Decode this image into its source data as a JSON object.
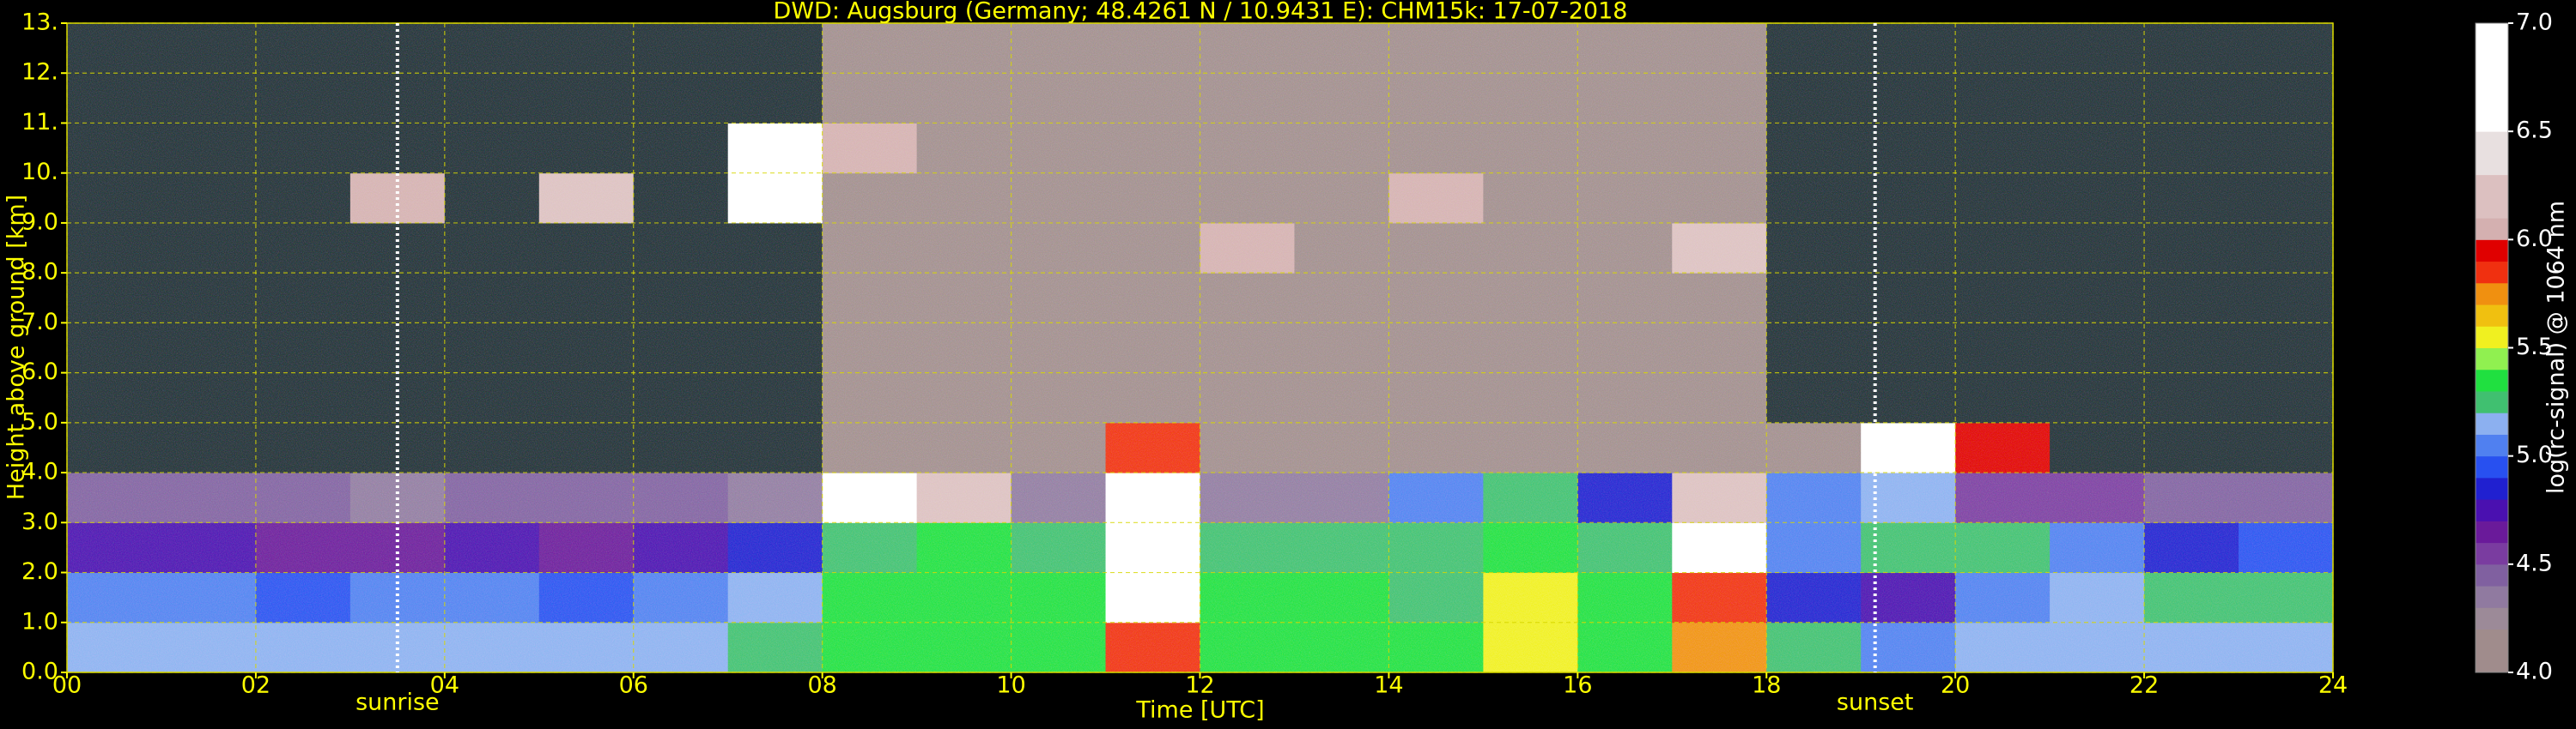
{
  "chart_data": {
    "type": "heatmap",
    "title": "DWD: Augsburg (Germany; 48.4261 N / 10.9431 E):    CHM15k: 17-07-2018",
    "xlabel": "Time [UTC]",
    "ylabel": "Height above ground [km]",
    "xlim": [
      0,
      24
    ],
    "ylim": [
      0,
      13
    ],
    "xticks": [
      {
        "value": 0,
        "label": "00"
      },
      {
        "value": 2,
        "label": "02"
      },
      {
        "value": 4,
        "label": "04"
      },
      {
        "value": 6,
        "label": "06"
      },
      {
        "value": 8,
        "label": "08"
      },
      10,
      12,
      14,
      16,
      18,
      20,
      22,
      24
    ],
    "yticks": [
      {
        "value": 0,
        "label": "0.0"
      },
      {
        "value": 1,
        "label": "1.0"
      },
      {
        "value": 2,
        "label": "2.0"
      },
      {
        "value": 3,
        "label": "3.0"
      },
      {
        "value": 4,
        "label": "4.0"
      },
      {
        "value": 5,
        "label": "5.0"
      },
      {
        "value": 6,
        "label": "6.0"
      },
      {
        "value": 7,
        "label": "7.0"
      },
      {
        "value": 8,
        "label": "8.0"
      },
      {
        "value": 9,
        "label": "9.0"
      },
      {
        "value": 10,
        "label": "10."
      },
      {
        "value": 11,
        "label": "11."
      },
      {
        "value": 12,
        "label": "12."
      },
      {
        "value": 13,
        "label": "13."
      }
    ],
    "grid": true,
    "grid_color": "#d8d800",
    "text_color": "#ffff00",
    "under_color": "#1e2c34",
    "z": [
      [
        5.15,
        5.15,
        5.15,
        5.15,
        5.15,
        5.15,
        5.15,
        5.25,
        5.35,
        5.35,
        5.35,
        5.8,
        5.35,
        5.35,
        5.35,
        5.6,
        5.35,
        5.7,
        5.25,
        5.05,
        5.15,
        5.15,
        5.15,
        5.15
      ],
      [
        5.05,
        5.05,
        4.95,
        5.05,
        5.05,
        4.95,
        5.05,
        5.15,
        5.35,
        5.35,
        5.35,
        6.6,
        5.35,
        5.35,
        5.3,
        5.6,
        5.35,
        5.8,
        4.85,
        4.75,
        5.05,
        5.15,
        5.25,
        5.25
      ],
      [
        4.75,
        4.75,
        4.65,
        4.65,
        4.75,
        4.65,
        4.75,
        4.85,
        5.3,
        5.35,
        5.25,
        6.6,
        5.25,
        5.25,
        5.25,
        5.35,
        5.25,
        6.6,
        5.05,
        5.25,
        5.25,
        5.05,
        4.85,
        4.95
      ],
      [
        4.45,
        4.45,
        4.45,
        4.35,
        4.45,
        4.45,
        4.45,
        4.35,
        6.6,
        6.2,
        4.35,
        6.6,
        4.35,
        4.35,
        5.05,
        5.25,
        4.85,
        6.2,
        5.05,
        5.15,
        4.55,
        4.55,
        4.45,
        4.45
      ],
      [
        3.9,
        3.9,
        3.9,
        3.9,
        3.9,
        3.9,
        3.9,
        3.9,
        4.05,
        4.05,
        4.05,
        5.8,
        4.05,
        4.05,
        4.05,
        4.05,
        4.05,
        4.05,
        4.05,
        6.6,
        5.9,
        3.9,
        3.9,
        3.9
      ],
      [
        3.9,
        3.9,
        3.9,
        3.9,
        3.9,
        3.9,
        3.9,
        3.9,
        4.05,
        4.05,
        4.05,
        4.05,
        4.05,
        4.05,
        4.05,
        4.05,
        4.05,
        4.05,
        3.9,
        3.9,
        3.9,
        3.9,
        3.9,
        3.9
      ],
      [
        3.9,
        3.9,
        3.9,
        3.9,
        3.9,
        3.9,
        3.9,
        3.9,
        4.05,
        4.05,
        4.05,
        4.05,
        4.05,
        4.05,
        4.05,
        4.05,
        4.05,
        4.05,
        3.9,
        3.9,
        3.9,
        3.9,
        3.9,
        3.9
      ],
      [
        3.9,
        3.9,
        3.9,
        3.9,
        3.9,
        3.9,
        3.9,
        3.9,
        4.05,
        4.05,
        4.05,
        4.05,
        4.05,
        4.05,
        4.05,
        4.05,
        4.05,
        4.05,
        3.9,
        3.9,
        3.9,
        3.9,
        3.9,
        3.9
      ],
      [
        3.9,
        3.9,
        3.9,
        3.9,
        3.9,
        3.9,
        3.9,
        3.9,
        4.05,
        4.05,
        4.05,
        4.05,
        6.0,
        4.05,
        4.05,
        4.05,
        4.05,
        6.2,
        3.9,
        3.9,
        3.9,
        3.9,
        3.9,
        3.9
      ],
      [
        3.9,
        3.9,
        3.9,
        6.0,
        3.9,
        6.2,
        3.9,
        6.6,
        4.05,
        4.05,
        4.05,
        4.05,
        4.05,
        4.05,
        6.0,
        4.05,
        4.05,
        4.05,
        3.9,
        3.9,
        3.9,
        3.9,
        3.9,
        3.9
      ],
      [
        3.9,
        3.9,
        3.9,
        3.9,
        3.9,
        3.9,
        3.9,
        6.6,
        6.1,
        4.05,
        4.05,
        4.05,
        4.05,
        4.05,
        4.05,
        4.05,
        4.05,
        4.05,
        3.9,
        3.9,
        3.9,
        3.9,
        3.9,
        3.9
      ],
      [
        3.9,
        3.9,
        3.9,
        3.9,
        3.9,
        3.9,
        3.9,
        3.9,
        4.05,
        4.05,
        4.05,
        4.05,
        4.05,
        4.05,
        4.05,
        4.05,
        4.05,
        4.05,
        3.9,
        3.9,
        3.9,
        3.9,
        3.9,
        3.9
      ],
      [
        3.9,
        3.9,
        3.9,
        3.9,
        3.9,
        3.9,
        3.9,
        3.9,
        4.05,
        4.05,
        4.05,
        4.05,
        4.05,
        4.05,
        4.05,
        4.05,
        4.05,
        4.05,
        3.9,
        3.9,
        3.9,
        3.9,
        3.9,
        3.9
      ]
    ],
    "annotations": [
      {
        "x": 3.5,
        "text": "sunrise"
      },
      {
        "x": 19.15,
        "text": "sunset"
      }
    ],
    "colorbar": {
      "label": "log(rc-signal) @ 1064 nm",
      "lim": [
        4,
        7
      ],
      "ticks": [
        {
          "value": 4,
          "label": "4.0"
        },
        {
          "value": 4.5,
          "label": "4.5"
        },
        {
          "value": 5,
          "label": "5.0"
        },
        {
          "value": 5.5,
          "label": "5.5"
        },
        {
          "value": 6,
          "label": "6.0"
        },
        {
          "value": 6.5,
          "label": "6.5"
        },
        {
          "value": 7,
          "label": "7.0"
        }
      ],
      "colors": [
        "#a08c8c",
        "#a08c8c",
        "#9c8a98",
        "#907aa0",
        "#8060a0",
        "#7a3ca0",
        "#6a1a9a",
        "#4a10b0",
        "#2020d0",
        "#2850f0",
        "#5080f0",
        "#8cb0f0",
        "#40c070",
        "#20e040",
        "#90f050",
        "#f0f020",
        "#f0c010",
        "#f09010",
        "#f03010",
        "#e00000",
        "#d4b0b0",
        "#dcc0c0",
        "#dcc0c0",
        "#e8e0e0",
        "#e8e0e0",
        "#ffffff",
        "#ffffff",
        "#ffffff",
        "#ffffff",
        "#ffffff"
      ]
    }
  }
}
